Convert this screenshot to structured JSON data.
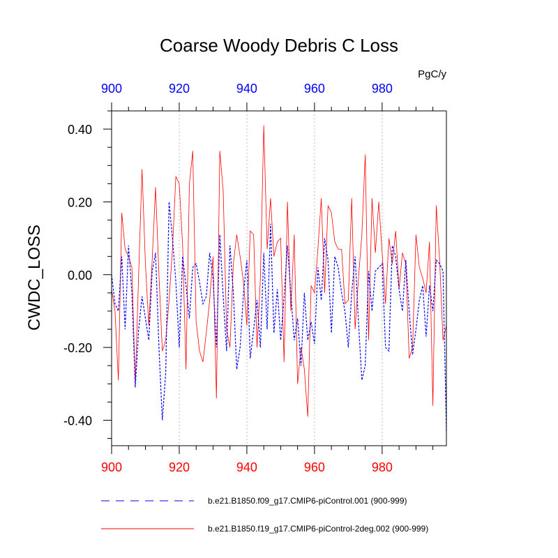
{
  "chart_data": {
    "type": "line",
    "title": "Coarse Woody Debris C Loss",
    "units": "PgC/y",
    "ylabel": "CWDC_LOSS",
    "xlabel": "",
    "xlim": [
      900,
      999
    ],
    "ylim": [
      -0.47,
      0.45
    ],
    "xticks": [
      900,
      920,
      940,
      960,
      980
    ],
    "xtick_labels": [
      "900",
      "920",
      "940",
      "960",
      "980"
    ],
    "yticks": [
      0.4,
      0.2,
      0.0,
      -0.2,
      -0.4
    ],
    "ytick_labels": [
      "0.40",
      "0.20",
      "0.00",
      "-0.20",
      "-0.40"
    ],
    "top_axis_color": "#0000ff",
    "bottom_axis_color": "#ff0000",
    "x": [
      900,
      901,
      902,
      903,
      904,
      905,
      906,
      907,
      908,
      909,
      910,
      911,
      912,
      913,
      914,
      915,
      916,
      917,
      918,
      919,
      920,
      921,
      922,
      923,
      924,
      925,
      926,
      927,
      928,
      929,
      930,
      931,
      932,
      933,
      934,
      935,
      936,
      937,
      938,
      939,
      940,
      941,
      942,
      943,
      944,
      945,
      946,
      947,
      948,
      949,
      950,
      951,
      952,
      953,
      954,
      955,
      956,
      957,
      958,
      959,
      960,
      961,
      962,
      963,
      964,
      965,
      966,
      967,
      968,
      969,
      970,
      971,
      972,
      973,
      974,
      975,
      976,
      977,
      978,
      979,
      980,
      981,
      982,
      983,
      984,
      985,
      986,
      987,
      988,
      989,
      990,
      991,
      992,
      993,
      994,
      995,
      996,
      997,
      998,
      999
    ],
    "series": [
      {
        "name": "b.e21.B1850.f09_g17.CMIP6-piControl.001 (900-999)",
        "color": "#0000ff",
        "style": "dashed",
        "values": [
          0.0,
          -0.08,
          -0.1,
          0.05,
          -0.15,
          0.08,
          -0.05,
          -0.31,
          -0.15,
          -0.06,
          -0.12,
          -0.18,
          0.01,
          0.06,
          -0.2,
          -0.4,
          -0.27,
          0.2,
          0.1,
          -0.02,
          -0.2,
          0.05,
          -0.03,
          -0.12,
          0.02,
          0.03,
          -0.02,
          -0.08,
          -0.06,
          0.06,
          -0.01,
          -0.2,
          0.11,
          -0.06,
          -0.21,
          0.08,
          -0.05,
          -0.26,
          -0.2,
          -0.05,
          0.04,
          -0.23,
          -0.15,
          -0.07,
          -0.2,
          0.06,
          -0.15,
          0.14,
          -0.16,
          -0.04,
          -0.18,
          -0.06,
          0.08,
          -0.05,
          -0.18,
          -0.12,
          -0.25,
          -0.05,
          -0.18,
          -0.13,
          -0.19,
          0.02,
          -0.07,
          0.1,
          0.04,
          -0.16,
          0.05,
          0.02,
          -0.05,
          -0.1,
          -0.2,
          -0.05,
          0.05,
          -0.13,
          -0.29,
          -0.25,
          0.01,
          -0.1,
          0.01,
          0.02,
          0.03,
          -0.2,
          -0.21,
          0.08,
          0.05,
          -0.04,
          -0.1,
          0.04,
          -0.1,
          -0.22,
          -0.15,
          -0.07,
          -0.03,
          -0.17,
          -0.03,
          -0.1,
          0.04,
          0.03,
          0.01,
          -0.43
        ]
      },
      {
        "name": "b.e21.B1850.f19_g17.CMIP6-piControl-2deg.002 (900-999)",
        "color": "#ff0000",
        "style": "solid",
        "values": [
          -0.04,
          -0.1,
          -0.29,
          0.17,
          0.07,
          0.05,
          0.02,
          -0.3,
          0.0,
          0.29,
          0.03,
          -0.14,
          0.04,
          0.24,
          0.0,
          -0.21,
          -0.18,
          -0.07,
          0.07,
          0.27,
          0.25,
          0.08,
          -0.26,
          0.25,
          0.34,
          -0.13,
          -0.21,
          -0.24,
          -0.16,
          -0.07,
          0.05,
          -0.34,
          0.34,
          0.23,
          -0.15,
          -0.2,
          0.03,
          0.11,
          0.05,
          -0.02,
          -0.14,
          0.12,
          0.11,
          -0.2,
          -0.01,
          0.41,
          0.07,
          0.21,
          0.05,
          0.09,
          0.1,
          -0.24,
          0.2,
          -0.1,
          0.11,
          -0.3,
          -0.2,
          -0.26,
          -0.39,
          -0.03,
          -0.05,
          0.07,
          0.21,
          -0.05,
          0.19,
          0.17,
          0.09,
          0.07,
          0.07,
          -0.08,
          -0.07,
          0.21,
          -0.15,
          -0.01,
          0.11,
          0.33,
          -0.18,
          0.21,
          0.06,
          0.2,
          0.06,
          -0.08,
          0.1,
          0.03,
          0.12,
          -0.04,
          0.06,
          0.03,
          -0.23,
          -0.2,
          0.11,
          0.02,
          -0.01,
          -0.05,
          0.09,
          -0.36,
          0.19,
          0.04,
          -0.18,
          -0.14
        ]
      }
    ]
  }
}
